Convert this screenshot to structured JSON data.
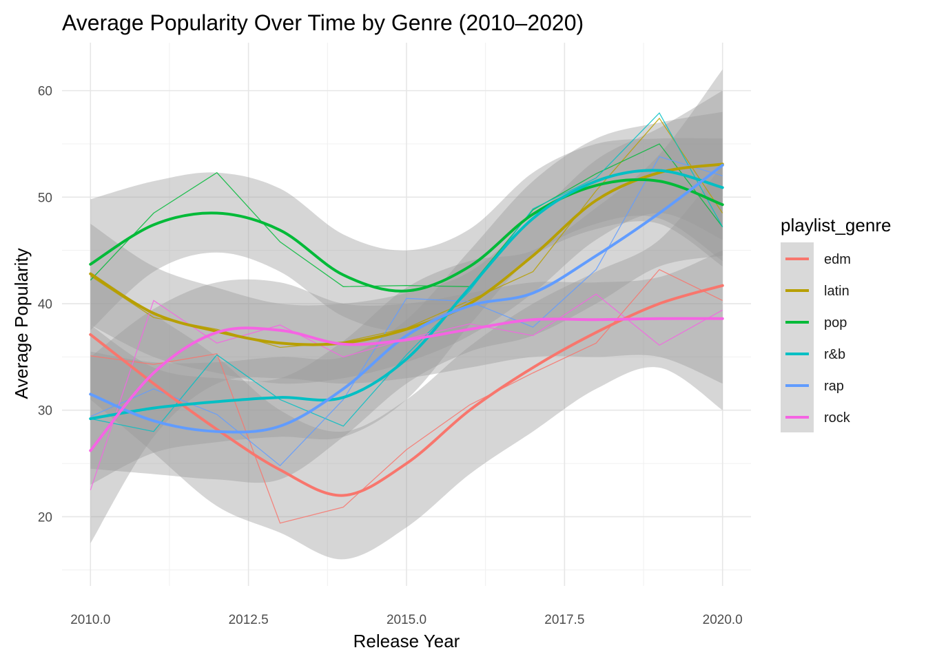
{
  "chart_data": {
    "type": "line",
    "title": "Average Popularity Over Time by Genre (2010–2020)",
    "xlabel": "Release Year",
    "ylabel": "Average Popularity",
    "xlim": [
      2009.55,
      2020.45
    ],
    "ylim": [
      13.5,
      64.5
    ],
    "x_ticks": [
      2010,
      2012.5,
      2015,
      2017.5,
      2020
    ],
    "x_tick_labels": [
      "2010.0",
      "2012.5",
      "2015.0",
      "2017.5",
      "2020.0"
    ],
    "y_ticks": [
      20,
      30,
      40,
      50,
      60
    ],
    "y_tick_labels": [
      "20",
      "30",
      "40",
      "50",
      "60"
    ],
    "grid": true,
    "legend_title": "playlist_genre",
    "legend_position": "right",
    "smooth_ribbon_color": "#999999",
    "x": [
      2010,
      2011,
      2012,
      2013,
      2014,
      2015,
      2016,
      2017,
      2018,
      2019,
      2020
    ],
    "series": [
      {
        "name": "edm",
        "color": "#F8766D",
        "values": [
          35.1,
          34.3,
          35.3,
          19.4,
          20.9,
          26.3,
          30.5,
          33.5,
          36.3,
          43.2,
          40.3
        ],
        "smooth": [
          37.1,
          32.5,
          28.2,
          24.4,
          22.0,
          25.0,
          30.0,
          34.0,
          37.3,
          40.0,
          41.7
        ],
        "band": [
          [
            31.0,
            43.0
          ],
          [
            26.0,
            39.0
          ],
          [
            21.0,
            35.0
          ],
          [
            18.5,
            30.0
          ],
          [
            16.0,
            28.0
          ],
          [
            19.0,
            31.0
          ],
          [
            24.0,
            36.0
          ],
          [
            28.0,
            40.0
          ],
          [
            32.0,
            43.0
          ],
          [
            34.0,
            46.0
          ],
          [
            30.0,
            53.0
          ]
        ]
      },
      {
        "name": "latin",
        "color": "#B79F00",
        "values": [
          42.6,
          38.7,
          37.6,
          35.9,
          36.4,
          37.7,
          40.3,
          43.0,
          50.6,
          57.4,
          48.5
        ],
        "smooth": [
          42.8,
          39.1,
          37.4,
          36.3,
          36.3,
          37.6,
          40.0,
          44.5,
          49.7,
          52.3,
          53.1
        ],
        "band": [
          [
            38.0,
            47.5
          ],
          [
            35.0,
            43.5
          ],
          [
            33.5,
            41.5
          ],
          [
            32.5,
            40.0
          ],
          [
            33.0,
            40.0
          ],
          [
            34.5,
            41.0
          ],
          [
            37.0,
            43.0
          ],
          [
            41.0,
            48.0
          ],
          [
            46.0,
            53.5
          ],
          [
            48.5,
            56.5
          ],
          [
            46.0,
            60.0
          ]
        ]
      },
      {
        "name": "pop",
        "color": "#00BA38",
        "values": [
          42.2,
          48.5,
          52.3,
          45.8,
          41.6,
          41.7,
          41.6,
          48.8,
          52.2,
          55.0,
          47.2
        ],
        "smooth": [
          43.7,
          47.4,
          48.5,
          46.9,
          42.7,
          41.2,
          43.5,
          48.4,
          51.1,
          51.5,
          49.3
        ],
        "band": [
          [
            37.5,
            49.8
          ],
          [
            43.0,
            51.5
          ],
          [
            44.8,
            52.3
          ],
          [
            43.0,
            50.8
          ],
          [
            38.8,
            46.5
          ],
          [
            37.5,
            45.0
          ],
          [
            40.0,
            47.0
          ],
          [
            44.5,
            52.3
          ],
          [
            47.0,
            55.0
          ],
          [
            47.5,
            55.5
          ],
          [
            43.5,
            55.5
          ]
        ]
      },
      {
        "name": "r&b",
        "color": "#00BFC4",
        "values": [
          29.2,
          28.0,
          35.2,
          31.0,
          28.5,
          35.2,
          41.2,
          48.9,
          51.8,
          57.9,
          47.2
        ],
        "smooth": [
          29.2,
          30.2,
          30.8,
          31.2,
          31.2,
          34.8,
          41.5,
          48.0,
          51.5,
          52.5,
          50.9
        ],
        "band": [
          [
            23.0,
            35.5
          ],
          [
            26.0,
            34.5
          ],
          [
            27.0,
            34.5
          ],
          [
            27.5,
            35.0
          ],
          [
            27.5,
            35.0
          ],
          [
            31.0,
            38.5
          ],
          [
            38.0,
            45.0
          ],
          [
            44.5,
            51.5
          ],
          [
            47.5,
            55.5
          ],
          [
            48.0,
            57.0
          ],
          [
            44.0,
            58.0
          ]
        ]
      },
      {
        "name": "rap",
        "color": "#619CFF",
        "values": [
          29.4,
          32.0,
          29.6,
          24.8,
          31.0,
          40.5,
          40.2,
          37.8,
          43.2,
          53.8,
          52.0
        ],
        "smooth": [
          31.5,
          29.0,
          28.0,
          28.5,
          32.0,
          37.0,
          39.8,
          41.0,
          44.5,
          48.5,
          53.0
        ],
        "band": [
          [
            24.5,
            38.0
          ],
          [
            24.0,
            34.0
          ],
          [
            23.5,
            33.0
          ],
          [
            23.5,
            33.0
          ],
          [
            27.5,
            36.5
          ],
          [
            32.5,
            41.5
          ],
          [
            35.5,
            44.0
          ],
          [
            37.0,
            45.0
          ],
          [
            40.0,
            49.0
          ],
          [
            43.5,
            54.0
          ],
          [
            44.5,
            62.0
          ]
        ]
      },
      {
        "name": "rock",
        "color": "#F564E3",
        "values": [
          22.5,
          40.3,
          36.3,
          38.0,
          35.0,
          36.7,
          38.1,
          37.0,
          40.9,
          36.1,
          39.4
        ],
        "smooth": [
          26.2,
          33.5,
          37.3,
          37.5,
          36.2,
          36.6,
          37.6,
          38.5,
          38.5,
          38.6,
          38.6
        ],
        "band": [
          [
            17.5,
            35.0
          ],
          [
            27.5,
            39.5
          ],
          [
            32.5,
            42.0
          ],
          [
            33.0,
            42.0
          ],
          [
            32.5,
            40.0
          ],
          [
            33.0,
            40.0
          ],
          [
            34.0,
            41.0
          ],
          [
            35.0,
            42.0
          ],
          [
            35.0,
            42.0
          ],
          [
            35.0,
            42.5
          ],
          [
            32.5,
            45.0
          ]
        ]
      }
    ]
  }
}
